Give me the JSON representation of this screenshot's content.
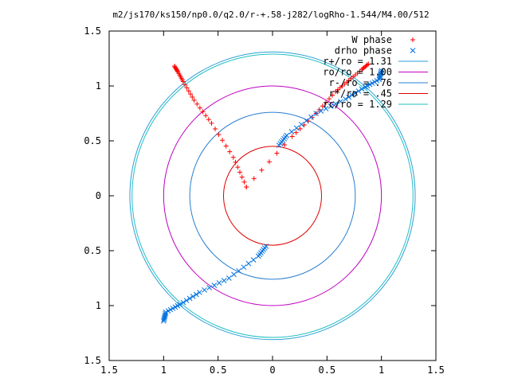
{
  "chart_data": {
    "type": "scatter",
    "title": "m2/js170/ks150/np0.0/q2.0/r-+.58-j282/logRho-1.544/M4.00/512",
    "xlim": [
      -1.5,
      1.5
    ],
    "ylim": [
      -1.5,
      1.5
    ],
    "x_ticks": [
      -1.5,
      -1,
      -0.5,
      0,
      0.5,
      1,
      1.5
    ],
    "y_ticks": [
      -1.5,
      -1,
      -0.5,
      0,
      0.5,
      1,
      1.5
    ],
    "x_tick_labels": [
      "1.5",
      "1",
      "0.5",
      "0",
      "0.5",
      "1",
      "1.5"
    ],
    "y_tick_labels": [
      "1.5",
      "1",
      "0.5",
      "0",
      "0.5",
      "1",
      "1.5"
    ],
    "grid": false,
    "legend_position": "top-right",
    "series": [
      {
        "name": "W phase",
        "marker": "plus",
        "color": "#ff0000",
        "arms": [
          [
            [
              -0.24,
              0.08
            ],
            [
              -0.36,
              0.35
            ],
            [
              -0.56,
              0.66
            ],
            [
              -0.72,
              0.87
            ],
            [
              -0.82,
              1.04
            ],
            [
              -0.87,
              1.13
            ],
            [
              -0.9,
              1.18
            ]
          ],
          [
            [
              -0.24,
              0.08
            ],
            [
              0.18,
              0.54
            ],
            [
              0.4,
              0.75
            ],
            [
              0.58,
              0.95
            ],
            [
              0.7,
              1.05
            ],
            [
              0.82,
              1.15
            ],
            [
              0.88,
              1.2
            ]
          ]
        ]
      },
      {
        "name": "drho phase",
        "marker": "cross",
        "color": "#0070e0",
        "arms": [
          [
            [
              0.06,
              0.46
            ],
            [
              0.13,
              0.55
            ],
            [
              0.4,
              0.75
            ],
            [
              0.67,
              0.88
            ],
            [
              0.85,
              0.99
            ],
            [
              0.98,
              1.06
            ],
            [
              1.0,
              1.14
            ]
          ],
          [
            [
              -0.06,
              -0.46
            ],
            [
              -0.13,
              -0.55
            ],
            [
              -0.4,
              -0.75
            ],
            [
              -0.67,
              -0.88
            ],
            [
              -0.85,
              -0.99
            ],
            [
              -0.98,
              -1.06
            ],
            [
              -1.0,
              -1.14
            ]
          ]
        ]
      },
      {
        "name": "r+/ro = 1.31",
        "type": "circle",
        "radius": 1.31,
        "color": "#2a9fd8"
      },
      {
        "name": "ro/ro = 1.00",
        "type": "circle",
        "radius": 1.0,
        "color": "#c000c0"
      },
      {
        "name": "r-/ro = .76",
        "type": "circle",
        "radius": 0.76,
        "color": "#2a7fd0"
      },
      {
        "name": "r*/ro = .45",
        "type": "circle",
        "radius": 0.45,
        "color": "#e00000"
      },
      {
        "name": "rc/ro = 1.29",
        "type": "circle",
        "radius": 1.29,
        "color": "#20c0c0"
      }
    ]
  }
}
